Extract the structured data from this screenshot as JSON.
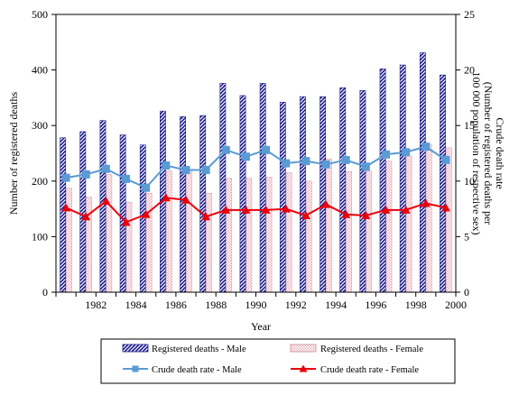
{
  "chart_data": {
    "type": "bar",
    "x": [
      1981,
      1982,
      1983,
      1984,
      1985,
      1986,
      1987,
      1988,
      1989,
      1990,
      1991,
      1992,
      1993,
      1994,
      1995,
      1996,
      1997,
      1998,
      1999,
      2000
    ],
    "x_tick_labels": [
      "1982",
      "1984",
      "1986",
      "1988",
      "1990",
      "1992",
      "1994",
      "1996",
      "1998",
      "2000"
    ],
    "xlabel": "Year",
    "ylabel": "Number of registered deaths",
    "y2label_line1": "Crude death rate",
    "y2label_line2": "(Number of registered deaths per",
    "y2label_line3": "100 000 population of respective sex)",
    "ylim": [
      0,
      500
    ],
    "y_ticks": [
      "0",
      "100",
      "200",
      "300",
      "400",
      "500"
    ],
    "y2lim": [
      0,
      25
    ],
    "y2_ticks": [
      "0",
      "5",
      "10",
      "15",
      "20",
      "25"
    ],
    "grid": false,
    "legend_position": "bottom",
    "series": [
      {
        "name": "Registered deaths - Male",
        "kind": "bar",
        "axis": "left",
        "color": "#1a1a8c",
        "values": [
          278,
          289,
          309,
          283,
          265,
          326,
          316,
          318,
          376,
          354,
          376,
          342,
          352,
          352,
          368,
          363,
          402,
          409,
          431,
          391
        ]
      },
      {
        "name": "Registered deaths - Female",
        "kind": "bar",
        "axis": "left",
        "color": "#f2d5dc",
        "values": [
          187,
          171,
          212,
          162,
          178,
          218,
          220,
          178,
          205,
          205,
          207,
          215,
          200,
          240,
          217,
          218,
          236,
          245,
          266,
          260
        ]
      },
      {
        "name": "Crude death rate - Male",
        "kind": "line",
        "axis": "right",
        "color": "#5a9bd4",
        "values": [
          10.3,
          10.6,
          11.1,
          10.2,
          9.4,
          11.4,
          11.0,
          11.0,
          12.8,
          12.2,
          12.8,
          11.6,
          11.8,
          11.5,
          11.9,
          11.3,
          12.4,
          12.6,
          13.1,
          11.9
        ]
      },
      {
        "name": "Crude death rate - Female",
        "kind": "line",
        "axis": "right",
        "color": "#e8000b",
        "values": [
          7.6,
          6.8,
          8.2,
          6.3,
          7.0,
          8.5,
          8.3,
          6.8,
          7.4,
          7.4,
          7.4,
          7.5,
          6.9,
          7.9,
          7.0,
          6.9,
          7.4,
          7.4,
          8.0,
          7.6
        ]
      }
    ]
  }
}
